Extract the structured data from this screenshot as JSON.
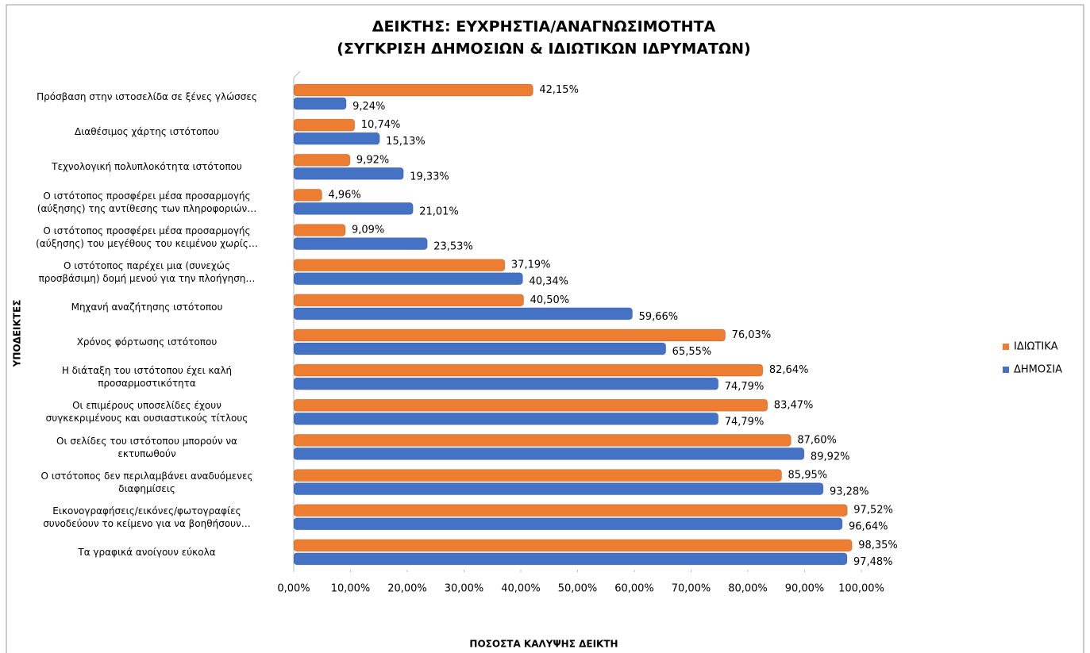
{
  "chart_data": {
    "type": "bar",
    "orientation": "horizontal",
    "title": "ΔΕΙΚΤΗΣ: ΕΥΧΡΗΣΤΙΑ/ΑΝΑΓΝΩΣΙΜΟΤΗΤΑ",
    "subtitle": "(ΣΥΓΚΡΙΣΗ ΔΗΜΟΣΙΩΝ & ΙΔΙΩΤΙΚΩΝ ΙΔΡΥΜΑΤΩΝ)",
    "y_label": "ΥΠΟΔΕΙΚΤΕΣ",
    "x_label": "ΠΟΣΟΣΤΑ ΚΑΛΥΨΗΣ ΔΕΙΚΤΗ",
    "categories": [
      "Πρόσβαση στην ιστοσελίδα σε ξένες γλώσσες",
      "Διαθέσιμος χάρτης ιστότοπου",
      "Τεχνολογική πολυπλοκότητα ιστότοπου",
      "Ο ιστότοπος προσφέρει μέσα προσαρμογής\n(αύξησης) της αντίθεσης των πληροφοριών…",
      "Ο ιστότοπος προσφέρει μέσα προσαρμογής\n(αύξησης) του μεγέθους του κειμένου χωρίς…",
      "Ο ιστότοπος παρέχει μια (συνεχώς\nπροσβάσιμη) δομή μενού για την πλοήγηση…",
      "Μηχανή αναζήτησης ιστότοπου",
      "Χρόνος φόρτωσης ιστότοπου",
      "Η διάταξη του ιστότοπου έχει καλή\nπροσαρμοστικότητα",
      "Οι επιμέρους υποσελίδες έχουν\nσυγκεκριμένους και ουσιαστικούς τίτλους",
      "Οι σελίδες του ιστότοπου μπορούν να\nεκτυπωθούν",
      "Ο ιστότοπος δεν περιλαμβάνει αναδυόμενες\nδιαφημίσεις",
      "Εικονογραφήσεις/εικόνες/φωτογραφίες\nσυνοδεύουν το κείμενο για να βοηθήσουν…",
      "Τα γραφικά ανοίγουν εύκολα"
    ],
    "series": [
      {
        "name": "ΙΔΙΩΤΙΚΑ",
        "color": "#ed7d31",
        "values": [
          42.15,
          10.74,
          9.92,
          4.96,
          9.09,
          37.19,
          40.5,
          76.03,
          82.64,
          83.47,
          87.6,
          85.95,
          97.52,
          98.35
        ],
        "value_labels": [
          "42,15%",
          "10,74%",
          "9,92%",
          "4,96%",
          "9,09%",
          "37,19%",
          "40,50%",
          "76,03%",
          "82,64%",
          "83,47%",
          "87,60%",
          "85,95%",
          "97,52%",
          "98,35%"
        ]
      },
      {
        "name": "ΔΗΜΟΣΙΑ",
        "color": "#4472c4",
        "values": [
          9.24,
          15.13,
          19.33,
          21.01,
          23.53,
          40.34,
          59.66,
          65.55,
          74.79,
          74.79,
          89.92,
          93.28,
          96.64,
          97.48
        ],
        "value_labels": [
          "9,24%",
          "15,13%",
          "19,33%",
          "21,01%",
          "23,53%",
          "40,34%",
          "59,66%",
          "65,55%",
          "74,79%",
          "74,79%",
          "89,92%",
          "93,28%",
          "96,64%",
          "97,48%"
        ]
      }
    ],
    "xlim": [
      0,
      100
    ],
    "xticks": [
      {
        "value": 0,
        "label": "0,00%"
      },
      {
        "value": 10,
        "label": "10,00%"
      },
      {
        "value": 20,
        "label": "20,00%"
      },
      {
        "value": 30,
        "label": "30,00%"
      },
      {
        "value": 40,
        "label": "40,00%"
      },
      {
        "value": 50,
        "label": "50,00%"
      },
      {
        "value": 60,
        "label": "60,00%"
      },
      {
        "value": 70,
        "label": "70,00%"
      },
      {
        "value": 80,
        "label": "80,00%"
      },
      {
        "value": 90,
        "label": "90,00%"
      },
      {
        "value": 100,
        "label": "100,00%"
      }
    ],
    "grid": false,
    "legend": "right"
  }
}
